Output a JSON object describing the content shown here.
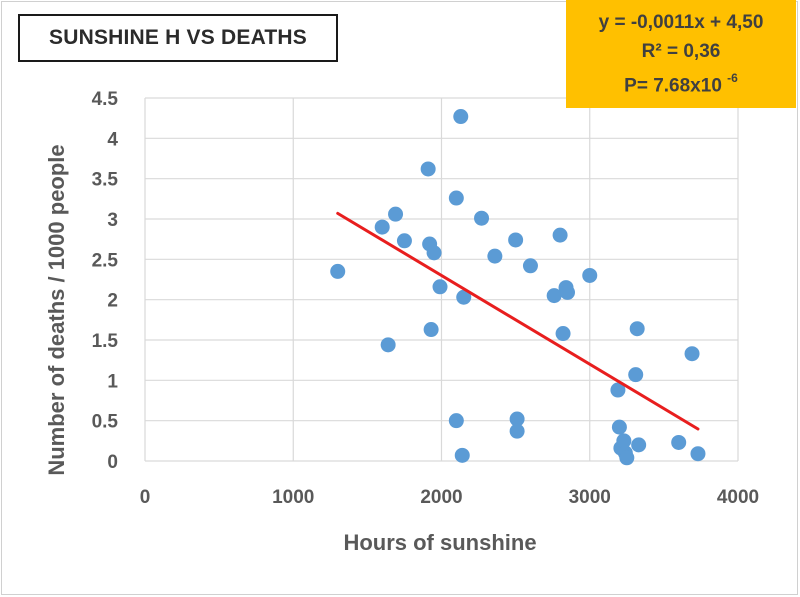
{
  "title": "SUNSHINE H VS DEATHS",
  "stats": {
    "equation": "y = -0,0011x + 4,50",
    "r_squared": "R² = 0,36",
    "p_prefix": "P= 7.68x10",
    "p_exponent": "-6"
  },
  "colors": {
    "points": "#5b9bd5",
    "trendline": "#e81e1e",
    "stats_box": "#ffc000",
    "grid": "#d9d9d9"
  },
  "chart_data": {
    "type": "scatter",
    "xlabel": "Hours of sunshine",
    "ylabel": "Number of deaths / 1000 people",
    "xlim": [
      0,
      4000
    ],
    "ylim": [
      0,
      4.5
    ],
    "x_ticks": [
      "0",
      "1000",
      "2000",
      "3000",
      "4000"
    ],
    "y_ticks": [
      "0",
      "0.5",
      "1",
      "1.5",
      "2",
      "2.5",
      "3",
      "3.5",
      "4",
      "4.5"
    ],
    "grid": true,
    "series": [
      {
        "points": [
          {
            "x": 1300,
            "y": 2.35
          },
          {
            "x": 1600,
            "y": 2.9
          },
          {
            "x": 1640,
            "y": 1.44
          },
          {
            "x": 1690,
            "y": 3.06
          },
          {
            "x": 1750,
            "y": 2.73
          },
          {
            "x": 1910,
            "y": 3.62
          },
          {
            "x": 1920,
            "y": 2.69
          },
          {
            "x": 1930,
            "y": 1.63
          },
          {
            "x": 1950,
            "y": 2.58
          },
          {
            "x": 1990,
            "y": 2.16
          },
          {
            "x": 2100,
            "y": 3.26
          },
          {
            "x": 2100,
            "y": 0.5
          },
          {
            "x": 2130,
            "y": 4.27
          },
          {
            "x": 2140,
            "y": 0.07
          },
          {
            "x": 2150,
            "y": 2.03
          },
          {
            "x": 2270,
            "y": 3.01
          },
          {
            "x": 2360,
            "y": 2.54
          },
          {
            "x": 2500,
            "y": 2.74
          },
          {
            "x": 2510,
            "y": 0.52
          },
          {
            "x": 2510,
            "y": 0.37
          },
          {
            "x": 2600,
            "y": 2.42
          },
          {
            "x": 2760,
            "y": 2.05
          },
          {
            "x": 2800,
            "y": 2.8
          },
          {
            "x": 2820,
            "y": 1.58
          },
          {
            "x": 2840,
            "y": 2.15
          },
          {
            "x": 2850,
            "y": 2.09
          },
          {
            "x": 3000,
            "y": 2.3
          },
          {
            "x": 3190,
            "y": 0.88
          },
          {
            "x": 3200,
            "y": 0.42
          },
          {
            "x": 3210,
            "y": 0.16
          },
          {
            "x": 3230,
            "y": 0.25
          },
          {
            "x": 3240,
            "y": 0.1
          },
          {
            "x": 3250,
            "y": 0.04
          },
          {
            "x": 3310,
            "y": 1.07
          },
          {
            "x": 3320,
            "y": 1.64
          },
          {
            "x": 3330,
            "y": 0.2
          },
          {
            "x": 3600,
            "y": 0.23
          },
          {
            "x": 3690,
            "y": 1.33
          },
          {
            "x": 3730,
            "y": 0.09
          }
        ]
      }
    ],
    "trendline": {
      "slope": -0.0011,
      "intercept": 4.5,
      "x_start": 1300,
      "x_end": 3730
    }
  }
}
